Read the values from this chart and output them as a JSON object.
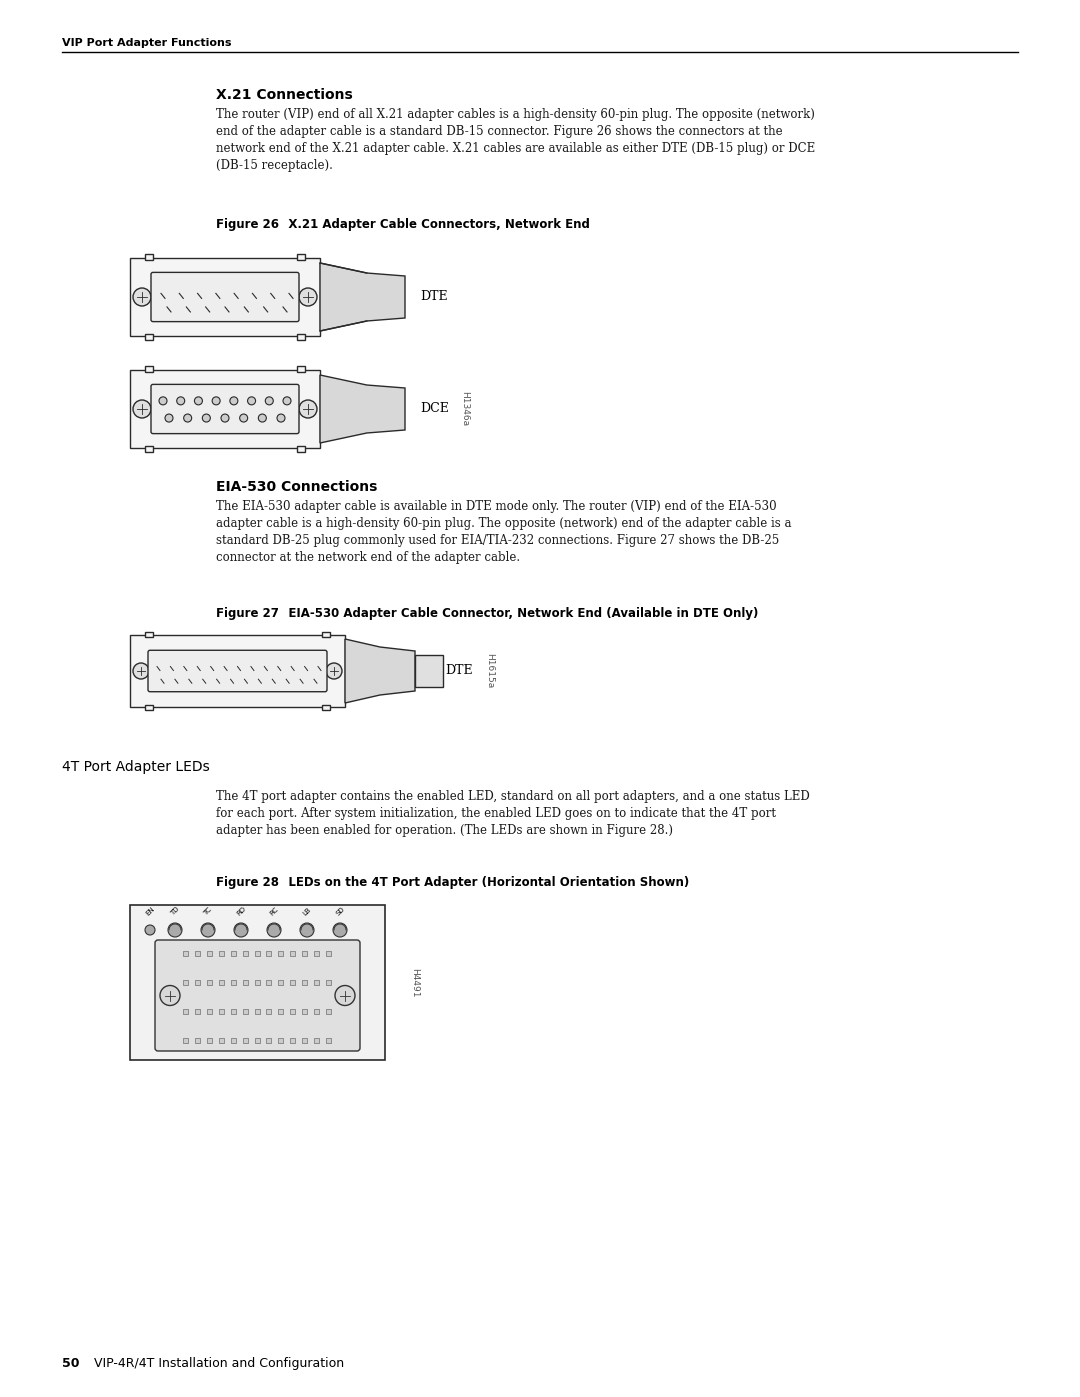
{
  "bg_color": "#ffffff",
  "header_text": "VIP Port Adapter Functions",
  "section1_title": "X.21 Connections",
  "section1_body": "The router (VIP) end of all X.21 adapter cables is a high-density 60-pin plug. The opposite (network)\nend of the adapter cable is a standard DB-15 connector. Figure 26 shows the connectors at the\nnetwork end of the X.21 adapter cable. X.21 cables are available as either DTE (DB-15 plug) or DCE\n(DB-15 receptacle).",
  "fig26_caption_bold": "Figure 26",
  "fig26_caption_rest": "   X.21 Adapter Cable Connectors, Network End",
  "fig26_label_DTE": "DTE",
  "fig26_label_DCE": "DCE",
  "fig26_watermark": "H1346a",
  "section2_title": "EIA-530 Connections",
  "section2_body": "The EIA-530 adapter cable is available in DTE mode only. The router (VIP) end of the EIA-530\nadapter cable is a high-density 60-pin plug. The opposite (network) end of the adapter cable is a\nstandard DB-25 plug commonly used for EIA/TIA-232 connections. Figure 27 shows the DB-25\nconnector at the network end of the adapter cable.",
  "fig27_caption_bold": "Figure 27",
  "fig27_caption_rest": "   EIA-530 Adapter Cable Connector, Network End (Available in DTE Only)",
  "fig27_label_DTE": "DTE",
  "fig27_watermark": "H1615a",
  "section3_title": "4T Port Adapter LEDs",
  "section3_body": "The 4T port adapter contains the enabled LED, standard on all port adapters, and a one status LED\nfor each port. After system initialization, the enabled LED goes on to indicate that the 4T port\nadapter has been enabled for operation. (The LEDs are shown in Figure 28.)",
  "fig28_caption_bold": "Figure 28",
  "fig28_caption_rest": "   LEDs on the 4T Port Adapter (Horizontal Orientation Shown)",
  "fig28_watermark": "H4491",
  "footer_bold": "50",
  "footer_rest": "   VIP-4R/4T Installation and Configuration",
  "text_color": "#1a1a1a"
}
